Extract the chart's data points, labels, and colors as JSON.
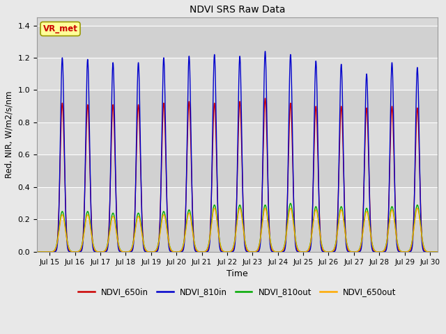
{
  "title": "NDVI SRS Raw Data",
  "xlabel": "Time",
  "ylabel": "Red, NIR, W/m2/s/nm",
  "ylim": [
    0.0,
    1.45
  ],
  "xlim_days": [
    14.5,
    30.3
  ],
  "background_color": "#e8e8e8",
  "plot_bg_color": "#d8d8d8",
  "grid_color": "#ffffff",
  "legend_label": "VR_met",
  "series": [
    {
      "name": "NDVI_650in",
      "color": "#cc0000",
      "lw": 1.0
    },
    {
      "name": "NDVI_810in",
      "color": "#0000cc",
      "lw": 1.0
    },
    {
      "name": "NDVI_810out",
      "color": "#00aa00",
      "lw": 1.0
    },
    {
      "name": "NDVI_650out",
      "color": "#ffaa00",
      "lw": 1.0
    }
  ],
  "peaks_650in": [
    0.92,
    0.91,
    0.91,
    0.91,
    0.92,
    0.93,
    0.92,
    0.93,
    0.95,
    0.92,
    0.9,
    0.9,
    0.89,
    0.9,
    0.89
  ],
  "peaks_810in": [
    1.2,
    1.19,
    1.17,
    1.17,
    1.2,
    1.21,
    1.22,
    1.21,
    1.24,
    1.22,
    1.18,
    1.16,
    1.1,
    1.17,
    1.14
  ],
  "peaks_810out": [
    0.25,
    0.25,
    0.24,
    0.24,
    0.25,
    0.26,
    0.29,
    0.29,
    0.29,
    0.3,
    0.28,
    0.28,
    0.27,
    0.28,
    0.29
  ],
  "peaks_650out": [
    0.23,
    0.23,
    0.22,
    0.22,
    0.23,
    0.24,
    0.27,
    0.27,
    0.27,
    0.27,
    0.26,
    0.26,
    0.25,
    0.26,
    0.27
  ],
  "xtick_days": [
    15,
    16,
    17,
    18,
    19,
    20,
    21,
    22,
    23,
    24,
    25,
    26,
    27,
    28,
    29,
    30
  ],
  "xtick_labels": [
    "Jul 15",
    "Jul 16",
    "Jul 17",
    "Jul 18",
    "Jul 19",
    "Jul 20",
    "Jul 21",
    "Jul 22",
    "Jul 23",
    "Jul 24",
    "Jul 25",
    "Jul 26",
    "Jul 27",
    "Jul 28",
    "Jul 29",
    "Jul 30"
  ],
  "yticks": [
    0.0,
    0.2,
    0.4,
    0.6,
    0.8,
    1.0,
    1.2,
    1.4
  ]
}
